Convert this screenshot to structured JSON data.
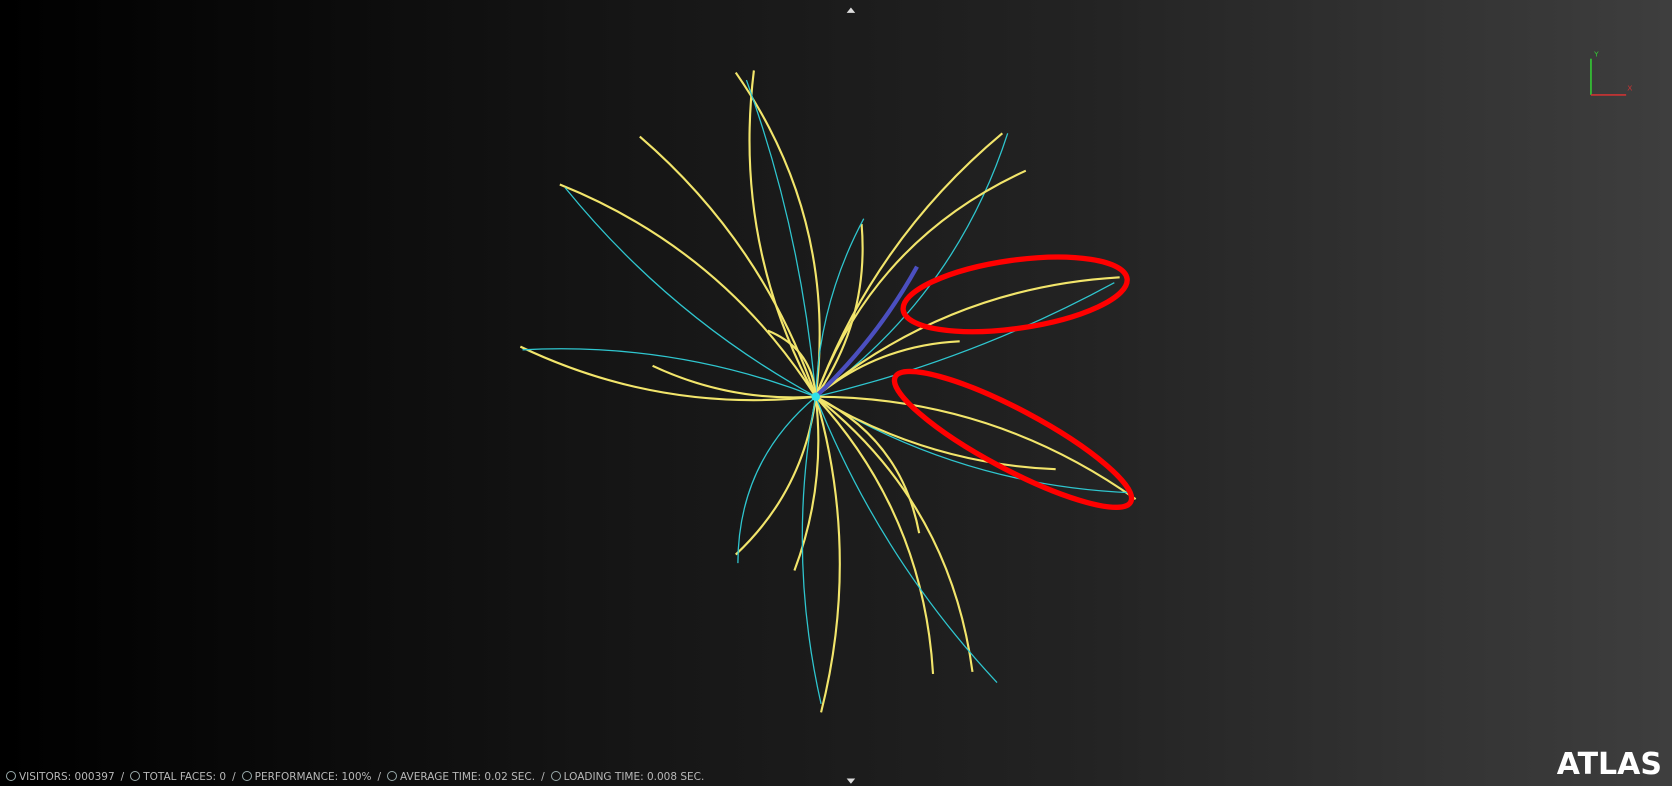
{
  "status_bar": {
    "items": [
      "VISITORS: 000397",
      "TOTAL FACES: 0",
      "PERFORMANCE: 100%",
      "AVERAGE TIME: 0.02 SEC.",
      "LOADING TIME: 0.008 SEC."
    ],
    "separator": "/"
  },
  "logo": "ATLAS",
  "axes": {
    "y": "Y",
    "x": "X"
  }
}
